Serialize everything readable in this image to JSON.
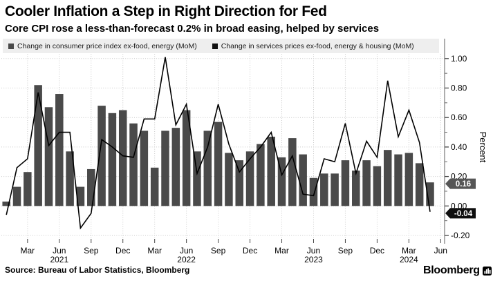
{
  "header": {
    "title": "Cooler Inflation a Step in Right Direction for Fed",
    "subtitle": "Core CPI rose a less-than-forecast 0.2% in broad easing, helped by services"
  },
  "legend": {
    "background": "#eeeeee",
    "items": [
      {
        "label": "Change in consumer price index ex-food, energy (MoM)",
        "color": "#4a4a4a"
      },
      {
        "label": "Change in services prices ex-food, energy & housing (MoM)",
        "color": "#111111"
      }
    ]
  },
  "chart_data": {
    "type": "bar+line",
    "title": "Core CPI vs services ex-food, energy & housing (MoM % change)",
    "ylabel": "Percent",
    "ylim": [
      -0.25,
      1.03
    ],
    "grid": "dotted",
    "months": [
      "Jan 2021",
      "Feb 2021",
      "Mar 2021",
      "Apr 2021",
      "May 2021",
      "Jun 2021",
      "Jul 2021",
      "Aug 2021",
      "Sep 2021",
      "Oct 2021",
      "Nov 2021",
      "Dec 2021",
      "Jan 2022",
      "Feb 2022",
      "Mar 2022",
      "Apr 2022",
      "May 2022",
      "Jun 2022",
      "Jul 2022",
      "Aug 2022",
      "Sep 2022",
      "Oct 2022",
      "Nov 2022",
      "Dec 2022",
      "Jan 2023",
      "Feb 2023",
      "Mar 2023",
      "Apr 2023",
      "May 2023",
      "Jun 2023",
      "Jul 2023",
      "Aug 2023",
      "Sep 2023",
      "Oct 2023",
      "Nov 2023",
      "Dec 2023",
      "Jan 2024",
      "Feb 2024",
      "Mar 2024",
      "Apr 2024",
      "May 2024"
    ],
    "series": [
      {
        "name": "Change in consumer price index ex-food, energy (MoM)",
        "type": "bar",
        "color": "#4a4a4a",
        "values": [
          0.03,
          0.13,
          0.23,
          0.82,
          0.67,
          0.76,
          0.37,
          0.13,
          0.25,
          0.68,
          0.63,
          0.65,
          0.56,
          0.51,
          0.26,
          0.51,
          0.53,
          0.65,
          0.37,
          0.51,
          0.57,
          0.36,
          0.31,
          0.37,
          0.42,
          0.47,
          0.33,
          0.46,
          0.35,
          0.19,
          0.22,
          0.22,
          0.31,
          0.24,
          0.31,
          0.27,
          0.38,
          0.35,
          0.36,
          0.29,
          0.16
        ]
      },
      {
        "name": "Change in services prices ex-food, energy & housing (MoM)",
        "type": "line",
        "color": "#000000",
        "values": [
          -0.06,
          0.26,
          0.32,
          0.77,
          0.41,
          0.5,
          0.5,
          -0.15,
          -0.05,
          0.45,
          0.4,
          0.34,
          0.33,
          0.59,
          0.59,
          1.01,
          0.55,
          0.69,
          0.22,
          0.4,
          0.69,
          0.42,
          0.23,
          0.32,
          0.4,
          0.5,
          0.21,
          0.34,
          0.08,
          0.07,
          0.32,
          0.3,
          0.56,
          0.22,
          0.44,
          0.33,
          0.85,
          0.47,
          0.65,
          0.43,
          -0.04
        ]
      }
    ],
    "yticks": [
      {
        "v": 1.0,
        "label": "1.00"
      },
      {
        "v": 0.8,
        "label": "0.80"
      },
      {
        "v": 0.6,
        "label": "0.60"
      },
      {
        "v": 0.4,
        "label": "0.40"
      },
      {
        "v": 0.2,
        "label": "0.20"
      },
      {
        "v": 0.0,
        "label": "0.00"
      },
      {
        "v": -0.2,
        "label": "-0.20"
      }
    ],
    "yticks_minor": [
      0.9,
      0.7,
      0.5,
      0.3,
      0.1,
      -0.1
    ],
    "xticks": [
      {
        "m": 2,
        "label": "Mar"
      },
      {
        "m": 5,
        "label": "Jun",
        "year": "2021"
      },
      {
        "m": 8,
        "label": "Sep"
      },
      {
        "m": 11,
        "label": "Dec"
      },
      {
        "m": 14,
        "label": "Mar"
      },
      {
        "m": 17,
        "label": "Jun",
        "year": "2022"
      },
      {
        "m": 20,
        "label": "Sep"
      },
      {
        "m": 23,
        "label": "Dec"
      },
      {
        "m": 26,
        "label": "Mar"
      },
      {
        "m": 29,
        "label": "Jun",
        "year": "2023"
      },
      {
        "m": 32,
        "label": "Sep"
      },
      {
        "m": 35,
        "label": "Dec"
      },
      {
        "m": 38,
        "label": "Mar",
        "year": "2024"
      },
      {
        "m": 41,
        "label": "Jun"
      }
    ],
    "annotations": [
      {
        "label": "0.16",
        "value": 0.16,
        "color": "#565656",
        "series": "bar"
      },
      {
        "label": "-0.04",
        "value": -0.04,
        "color": "#0f0f0f",
        "series": "line"
      }
    ],
    "colors": {
      "gridline": "#c9c9c9",
      "axis_line": "#8c8c8c",
      "tick": "#444444"
    }
  },
  "footer": {
    "source": "Source: Bureau of Labor Statistics, Bloomberg",
    "brand": "Bloomberg"
  }
}
